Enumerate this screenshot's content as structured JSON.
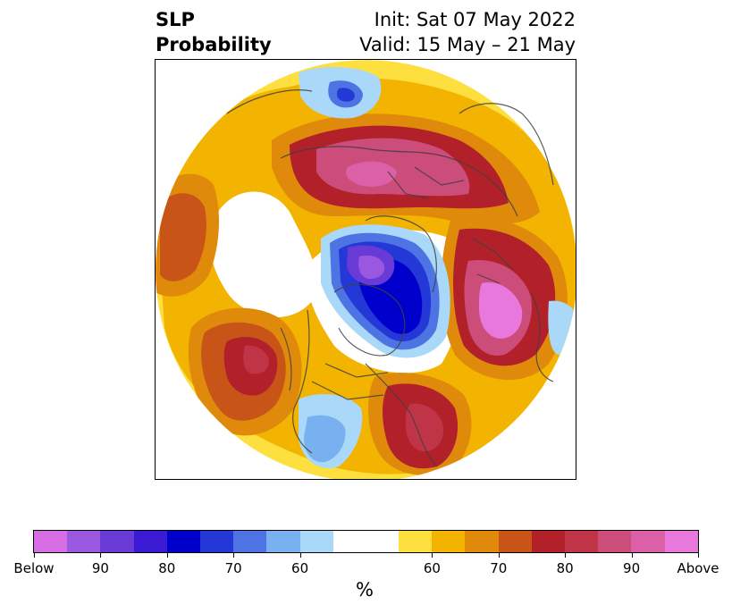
{
  "header": {
    "title_line1": "SLP",
    "title_line2": "Probability",
    "init": "Init: Sat 07 May 2022",
    "valid": "Valid: 15 May – 21 May"
  },
  "colorbar": {
    "units": "%",
    "colors": [
      "#d86ee6",
      "#9a58e0",
      "#6a3ad6",
      "#3a1ad2",
      "#0000cc",
      "#2438d8",
      "#4e74e4",
      "#78b0f0",
      "#aad8f8",
      "#ffffff",
      "#fde040",
      "#f2b400",
      "#e08a0c",
      "#c85418",
      "#b2202a",
      "#c03448",
      "#cc4c7a",
      "#dc60a8",
      "#e878dc"
    ],
    "tick_labels": [
      "Below",
      "90",
      "80",
      "70",
      "60",
      "60",
      "70",
      "80",
      "90",
      "Above"
    ]
  },
  "legend_colors": {
    "below_strong": "#0000cc",
    "below_light": "#aad8f8",
    "above_light": "#fde040",
    "above_mid": "#e08a0c",
    "above_strong": "#b2202a",
    "above_max": "#e878dc"
  }
}
